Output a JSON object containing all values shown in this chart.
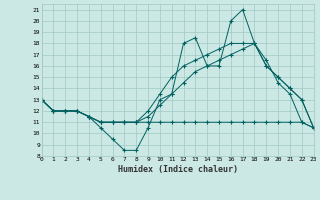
{
  "xlabel": "Humidex (Indice chaleur)",
  "bg_color": "#cce8e4",
  "grid_color": "#a0c8c4",
  "line_color": "#006060",
  "xlim": [
    0,
    23
  ],
  "ylim": [
    8,
    21.5
  ],
  "yticks": [
    8,
    9,
    10,
    11,
    12,
    13,
    14,
    15,
    16,
    17,
    18,
    19,
    20,
    21
  ],
  "xticks": [
    0,
    1,
    2,
    3,
    4,
    5,
    6,
    7,
    8,
    9,
    10,
    11,
    12,
    13,
    14,
    15,
    16,
    17,
    18,
    19,
    20,
    21,
    22,
    23
  ],
  "series": [
    [
      13,
      12,
      12,
      12,
      11.5,
      10.5,
      9.5,
      8.5,
      8.5,
      10.5,
      13,
      13.5,
      18,
      18.5,
      16,
      16,
      20,
      21,
      18,
      16.5,
      14.5,
      13.5,
      11,
      10.5
    ],
    [
      13,
      12,
      12,
      12,
      11.5,
      11,
      11,
      11,
      11,
      11,
      11,
      11,
      11,
      11,
      11,
      11,
      11,
      11,
      11,
      11,
      11,
      11,
      11,
      10.5
    ],
    [
      13,
      12,
      12,
      12,
      11.5,
      11,
      11,
      11,
      11,
      11.5,
      12.5,
      13.5,
      14.5,
      15.5,
      16,
      16.5,
      17,
      17.5,
      18,
      16,
      15,
      14,
      13,
      10.5
    ],
    [
      13,
      12,
      12,
      12,
      11.5,
      11,
      11,
      11,
      11,
      12,
      13.5,
      15,
      16,
      16.5,
      17,
      17.5,
      18,
      18,
      18,
      16,
      15,
      14,
      13,
      10.5
    ]
  ]
}
